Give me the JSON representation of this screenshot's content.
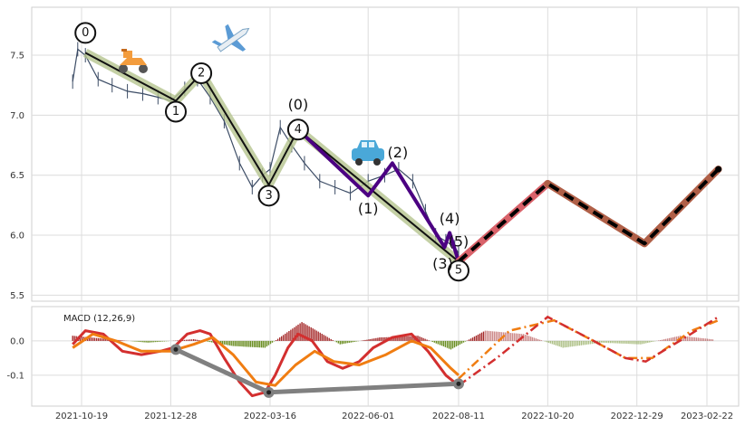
{
  "chart_data": [
    {
      "type": "line",
      "panel": "price",
      "x_tick_labels": [
        "2021-10-19",
        "2021-12-28",
        "2022-03-16",
        "2022-06-01",
        "2022-08-11",
        "2022-10-20",
        "2022-12-29",
        "2023-02-22"
      ],
      "y_tick_labels": [
        "5.5",
        "6.0",
        "6.5",
        "7.0",
        "7.5"
      ],
      "ylim": [
        5.45,
        7.9
      ],
      "grid": true,
      "price_series": {
        "x": [
          "2021-10-12",
          "2021-10-16",
          "2021-10-22",
          "2021-11-01",
          "2021-11-12",
          "2021-11-24",
          "2021-12-06",
          "2021-12-18",
          "2021-12-28",
          "2022-01-08",
          "2022-01-18",
          "2022-01-28",
          "2022-02-08",
          "2022-02-20",
          "2022-03-02",
          "2022-03-10",
          "2022-03-16",
          "2022-03-24",
          "2022-04-02",
          "2022-04-12",
          "2022-04-24",
          "2022-05-06",
          "2022-05-18",
          "2022-06-01",
          "2022-06-14",
          "2022-06-25",
          "2022-07-06",
          "2022-07-16",
          "2022-07-24",
          "2022-08-01",
          "2022-08-08",
          "2022-08-11"
        ],
        "values": [
          7.28,
          7.55,
          7.5,
          7.3,
          7.25,
          7.2,
          7.18,
          7.15,
          7.12,
          7.22,
          7.3,
          7.15,
          6.95,
          6.6,
          6.4,
          6.5,
          6.55,
          6.9,
          6.75,
          6.6,
          6.45,
          6.4,
          6.35,
          6.45,
          6.5,
          6.55,
          6.45,
          6.2,
          6.0,
          5.95,
          5.9,
          5.85
        ]
      },
      "elliott_wave": {
        "x": [
          "2021-10-22",
          "2022-01-01",
          "2022-01-21",
          "2022-03-15",
          "2022-04-07",
          "2022-08-11"
        ],
        "values": [
          7.52,
          7.12,
          7.35,
          6.42,
          6.88,
          5.78
        ],
        "labels": [
          "0",
          "1",
          "2",
          "3",
          "4",
          "5"
        ]
      },
      "subwave": {
        "x": [
          "2022-04-07",
          "2022-06-01",
          "2022-06-20",
          "2022-07-31",
          "2022-08-04",
          "2022-08-11"
        ],
        "values": [
          6.88,
          6.33,
          6.6,
          5.9,
          6.02,
          5.78
        ],
        "labels": [
          "(0)",
          "(1)",
          "(2)",
          "(3)",
          "(4)",
          "(5)"
        ]
      },
      "projection": {
        "x": [
          "2022-08-11",
          "2022-10-20",
          "2023-01-04",
          "2023-03-03"
        ],
        "values": [
          5.78,
          6.43,
          5.93,
          6.55
        ]
      }
    },
    {
      "type": "line",
      "panel": "macd",
      "title": "MACD (12,26,9)",
      "y_tick_labels": [
        "0.0",
        "-0.1"
      ],
      "ylim": [
        -0.19,
        0.1
      ],
      "grid": true,
      "macd": {
        "x": [
          "2021-10-12",
          "2021-10-22",
          "2021-11-05",
          "2021-11-20",
          "2021-12-05",
          "2021-12-20",
          "2021-12-30",
          "2022-01-10",
          "2022-01-20",
          "2022-01-28",
          "2022-02-08",
          "2022-02-20",
          "2022-03-02",
          "2022-03-12",
          "2022-03-20",
          "2022-03-30",
          "2022-04-07",
          "2022-04-18",
          "2022-04-30",
          "2022-05-12",
          "2022-05-25",
          "2022-06-05",
          "2022-06-20",
          "2022-07-05",
          "2022-07-18",
          "2022-08-01",
          "2022-08-11"
        ],
        "values": [
          -0.01,
          0.03,
          0.02,
          -0.03,
          -0.04,
          -0.03,
          -0.02,
          0.02,
          0.03,
          0.02,
          -0.05,
          -0.12,
          -0.16,
          -0.15,
          -0.1,
          -0.02,
          0.02,
          0.0,
          -0.06,
          -0.08,
          -0.06,
          -0.02,
          0.01,
          0.02,
          -0.03,
          -0.1,
          -0.13
        ]
      },
      "signal": {
        "x": [
          "2021-10-12",
          "2021-10-28",
          "2021-11-15",
          "2021-12-05",
          "2021-12-28",
          "2022-01-15",
          "2022-01-30",
          "2022-02-15",
          "2022-03-05",
          "2022-03-20",
          "2022-04-05",
          "2022-04-20",
          "2022-05-05",
          "2022-05-25",
          "2022-06-15",
          "2022-07-05",
          "2022-07-20",
          "2022-08-05",
          "2022-08-11"
        ],
        "values": [
          -0.02,
          0.02,
          0.0,
          -0.03,
          -0.03,
          -0.01,
          0.01,
          -0.04,
          -0.12,
          -0.13,
          -0.07,
          -0.03,
          -0.06,
          -0.07,
          -0.04,
          0.0,
          -0.02,
          -0.08,
          -0.1
        ]
      },
      "histogram": {
        "x": [
          "2021-10-12",
          "2021-11-10",
          "2021-12-10",
          "2022-01-15",
          "2022-02-15",
          "2022-03-12",
          "2022-04-10",
          "2022-05-10",
          "2022-06-10",
          "2022-07-10",
          "2022-08-05",
          "2022-09-01",
          "2022-10-01",
          "2022-11-01",
          "2022-12-01",
          "2023-01-01",
          "2023-02-01",
          "2023-02-28"
        ],
        "values": [
          0.015,
          0.005,
          -0.005,
          0.005,
          -0.015,
          -0.02,
          0.055,
          -0.01,
          0.01,
          0.015,
          -0.025,
          0.03,
          0.02,
          -0.02,
          -0.005,
          -0.01,
          0.015,
          0.004
        ]
      },
      "projection_macd": {
        "x": [
          "2022-08-11",
          "2022-09-10",
          "2022-10-20",
          "2022-11-20",
          "2022-12-20",
          "2023-01-05",
          "2023-02-05",
          "2023-03-03"
        ],
        "values": [
          -0.13,
          -0.05,
          0.07,
          0.01,
          -0.05,
          -0.06,
          0.01,
          0.07
        ]
      },
      "projection_signal": {
        "x": [
          "2022-08-11",
          "2022-09-20",
          "2022-10-25",
          "2022-11-25",
          "2022-12-20",
          "2023-01-10",
          "2023-02-10",
          "2023-03-03"
        ],
        "values": [
          -0.11,
          0.03,
          0.06,
          0.0,
          -0.05,
          -0.05,
          0.03,
          0.06
        ]
      },
      "divergence": {
        "x": [
          "2022-01-01",
          "2022-03-15",
          "2022-08-11"
        ],
        "values": [
          -0.025,
          -0.15,
          -0.125
        ]
      }
    }
  ],
  "colors": {
    "price": "#3d4d66",
    "wave_main": "#111111",
    "wave_halo": "#b5c48f",
    "subwave": "#4b0082",
    "projection_outer": "#d9626a",
    "projection_inner": "#000000",
    "projection_brown": "#b06048",
    "macd": "#d32f2f",
    "signal": "#f07d12",
    "hist_pos": "#a52a2a",
    "hist_neg": "#6b8e23",
    "divergence": "#808080"
  },
  "icons": {
    "scooter": "scooter-icon",
    "airplane": "airplane-icon",
    "car": "car-icon"
  }
}
